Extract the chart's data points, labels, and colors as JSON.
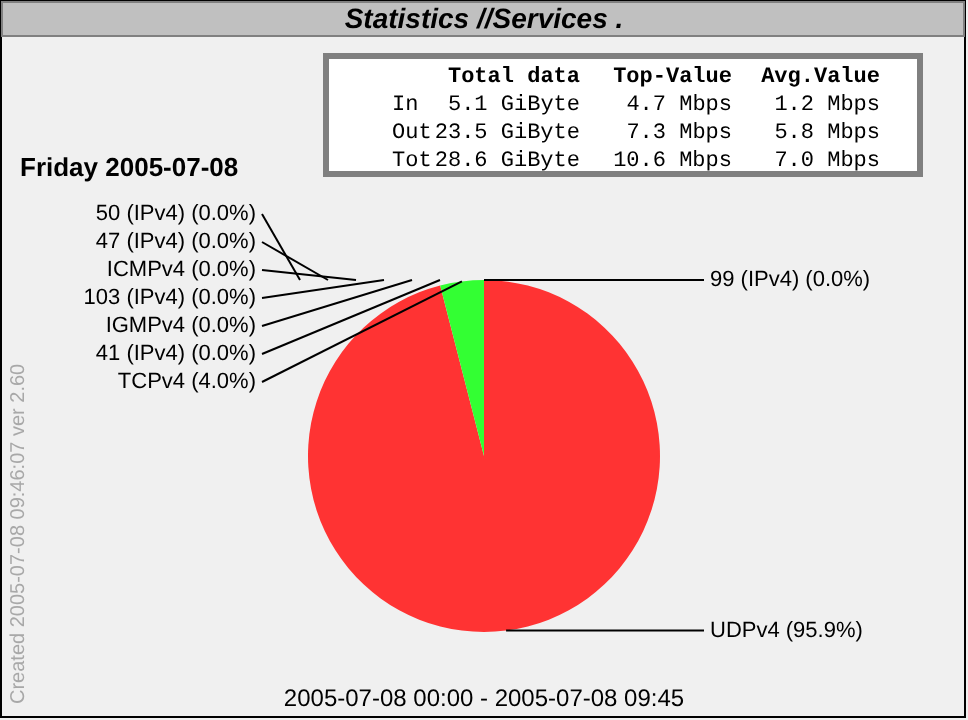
{
  "chart_data": {
    "type": "pie",
    "title": "Statistics //Services .",
    "subtitle": "Friday 2005-07-08",
    "categories": [
      "99 (IPv4)",
      "UDPv4",
      "TCPv4",
      "41 (IPv4)",
      "IGMPv4",
      "103 (IPv4)",
      "ICMPv4",
      "47 (IPv4)",
      "50 (IPv4)"
    ],
    "values": [
      0.0,
      95.9,
      4.0,
      0.0,
      0.0,
      0.0,
      0.0,
      0.0,
      0.0
    ],
    "colors": [
      "#3333ff",
      "#ff3333",
      "#33ff33",
      "#ffff33",
      "#33ffff",
      "#ff33ff",
      "#888888",
      "#ff9933",
      "#9933ff"
    ],
    "value_labels": [
      "(0.0%)",
      "(95.9%)",
      "(4.0%)",
      "(0.0%)",
      "(0.0%)",
      "(0.0%)",
      "(0.0%)",
      "(0.0%)",
      "(0.0%)"
    ],
    "annotations": [
      "Total data",
      "Top-Value",
      "Avg.Value",
      "In",
      "5.1 GiByte",
      "4.7 Mbps",
      "1.2 Mbps",
      "Out",
      "23.5 GiByte",
      "7.3 Mbps",
      "5.8 Mbps",
      "Tot",
      "28.6 GiByte",
      "10.6 Mbps",
      "7.0 Mbps",
      "2005-07-08 00:00 - 2005-07-08 09:45",
      "Created 2005-07-08 09:46:07  ver 2.60"
    ]
  }
}
